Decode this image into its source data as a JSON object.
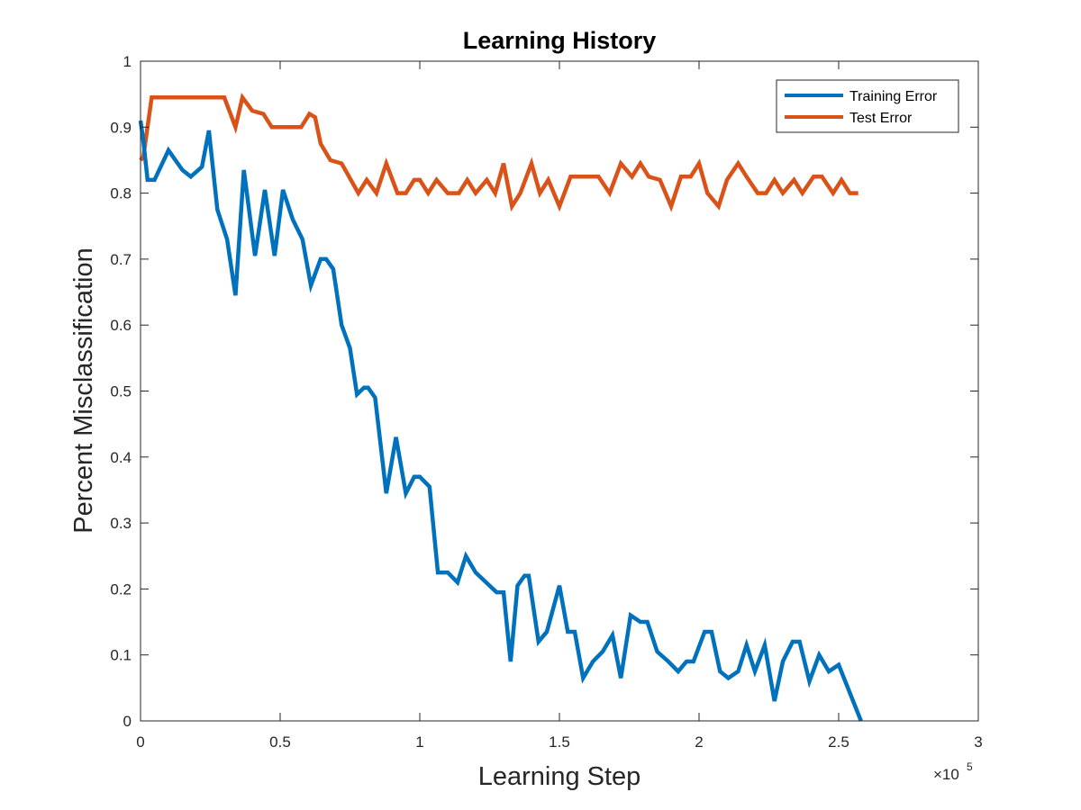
{
  "chart_data": {
    "type": "line",
    "title": "Learning History",
    "xlabel": "Learning Step",
    "ylabel": "Percent Misclassification",
    "x_exponent_label": "×10",
    "x_exponent_power": "5",
    "xlim": [
      0,
      3
    ],
    "ylim": [
      0,
      1
    ],
    "x_ticks": [
      0,
      0.5,
      1,
      1.5,
      2,
      2.5,
      3
    ],
    "x_tick_labels": [
      "0",
      "0.5",
      "1",
      "1.5",
      "2",
      "2.5",
      "3"
    ],
    "y_ticks": [
      0,
      0.1,
      0.2,
      0.3,
      0.4,
      0.5,
      0.6,
      0.7,
      0.8,
      0.9,
      1
    ],
    "y_tick_labels": [
      "0",
      "0.1",
      "0.2",
      "0.3",
      "0.4",
      "0.5",
      "0.6",
      "0.7",
      "0.8",
      "0.9",
      "1"
    ],
    "grid": false,
    "legend_position": "top-right",
    "series": [
      {
        "name": "Training Error",
        "color": "#0072BD",
        "points": [
          [
            0,
            0.91
          ],
          [
            0.01,
            0.88
          ],
          [
            0.025,
            0.82
          ],
          [
            0.05,
            0.82
          ],
          [
            0.1,
            0.865
          ],
          [
            0.15,
            0.835
          ],
          [
            0.18,
            0.825
          ],
          [
            0.22,
            0.84
          ],
          [
            0.245,
            0.895
          ],
          [
            0.275,
            0.775
          ],
          [
            0.31,
            0.73
          ],
          [
            0.34,
            0.645
          ],
          [
            0.37,
            0.835
          ],
          [
            0.41,
            0.705
          ],
          [
            0.445,
            0.805
          ],
          [
            0.48,
            0.705
          ],
          [
            0.51,
            0.805
          ],
          [
            0.545,
            0.76
          ],
          [
            0.58,
            0.73
          ],
          [
            0.61,
            0.66
          ],
          [
            0.645,
            0.7
          ],
          [
            0.665,
            0.7
          ],
          [
            0.69,
            0.685
          ],
          [
            0.72,
            0.6
          ],
          [
            0.75,
            0.565
          ],
          [
            0.775,
            0.495
          ],
          [
            0.8,
            0.505
          ],
          [
            0.815,
            0.505
          ],
          [
            0.84,
            0.49
          ],
          [
            0.88,
            0.345
          ],
          [
            0.915,
            0.43
          ],
          [
            0.95,
            0.345
          ],
          [
            0.98,
            0.37
          ],
          [
            1.0,
            0.37
          ],
          [
            1.035,
            0.355
          ],
          [
            1.065,
            0.225
          ],
          [
            1.1,
            0.225
          ],
          [
            1.135,
            0.21
          ],
          [
            1.165,
            0.25
          ],
          [
            1.2,
            0.225
          ],
          [
            1.275,
            0.195
          ],
          [
            1.3,
            0.195
          ],
          [
            1.325,
            0.09
          ],
          [
            1.35,
            0.205
          ],
          [
            1.375,
            0.22
          ],
          [
            1.39,
            0.22
          ],
          [
            1.425,
            0.12
          ],
          [
            1.455,
            0.135
          ],
          [
            1.5,
            0.205
          ],
          [
            1.53,
            0.135
          ],
          [
            1.555,
            0.135
          ],
          [
            1.585,
            0.065
          ],
          [
            1.62,
            0.09
          ],
          [
            1.655,
            0.105
          ],
          [
            1.69,
            0.13
          ],
          [
            1.72,
            0.065
          ],
          [
            1.755,
            0.16
          ],
          [
            1.79,
            0.15
          ],
          [
            1.815,
            0.15
          ],
          [
            1.85,
            0.105
          ],
          [
            1.89,
            0.09
          ],
          [
            1.925,
            0.075
          ],
          [
            1.955,
            0.09
          ],
          [
            1.98,
            0.09
          ],
          [
            2.02,
            0.135
          ],
          [
            2.045,
            0.135
          ],
          [
            2.075,
            0.075
          ],
          [
            2.105,
            0.065
          ],
          [
            2.14,
            0.075
          ],
          [
            2.17,
            0.115
          ],
          [
            2.2,
            0.075
          ],
          [
            2.235,
            0.115
          ],
          [
            2.27,
            0.03
          ],
          [
            2.3,
            0.09
          ],
          [
            2.335,
            0.12
          ],
          [
            2.36,
            0.12
          ],
          [
            2.395,
            0.06
          ],
          [
            2.43,
            0.1
          ],
          [
            2.465,
            0.075
          ],
          [
            2.5,
            0.085
          ],
          [
            2.58,
            0.0
          ]
        ]
      },
      {
        "name": "Test Error",
        "color": "#D95319",
        "points": [
          [
            0,
            0.85
          ],
          [
            0.01,
            0.855
          ],
          [
            0.04,
            0.945
          ],
          [
            0.1,
            0.945
          ],
          [
            0.3,
            0.945
          ],
          [
            0.34,
            0.9
          ],
          [
            0.365,
            0.945
          ],
          [
            0.4,
            0.925
          ],
          [
            0.44,
            0.92
          ],
          [
            0.47,
            0.9
          ],
          [
            0.575,
            0.9
          ],
          [
            0.605,
            0.92
          ],
          [
            0.625,
            0.915
          ],
          [
            0.645,
            0.875
          ],
          [
            0.68,
            0.85
          ],
          [
            0.72,
            0.845
          ],
          [
            0.78,
            0.8
          ],
          [
            0.81,
            0.82
          ],
          [
            0.845,
            0.8
          ],
          [
            0.88,
            0.845
          ],
          [
            0.92,
            0.8
          ],
          [
            0.95,
            0.8
          ],
          [
            0.98,
            0.82
          ],
          [
            1.0,
            0.82
          ],
          [
            1.03,
            0.8
          ],
          [
            1.06,
            0.82
          ],
          [
            1.1,
            0.8
          ],
          [
            1.14,
            0.8
          ],
          [
            1.17,
            0.82
          ],
          [
            1.2,
            0.8
          ],
          [
            1.24,
            0.82
          ],
          [
            1.27,
            0.8
          ],
          [
            1.3,
            0.845
          ],
          [
            1.33,
            0.78
          ],
          [
            1.36,
            0.8
          ],
          [
            1.4,
            0.845
          ],
          [
            1.43,
            0.8
          ],
          [
            1.46,
            0.82
          ],
          [
            1.5,
            0.78
          ],
          [
            1.54,
            0.825
          ],
          [
            1.64,
            0.825
          ],
          [
            1.68,
            0.8
          ],
          [
            1.72,
            0.845
          ],
          [
            1.76,
            0.825
          ],
          [
            1.79,
            0.845
          ],
          [
            1.82,
            0.825
          ],
          [
            1.86,
            0.82
          ],
          [
            1.9,
            0.78
          ],
          [
            1.935,
            0.825
          ],
          [
            1.97,
            0.825
          ],
          [
            2.0,
            0.845
          ],
          [
            2.03,
            0.8
          ],
          [
            2.07,
            0.78
          ],
          [
            2.1,
            0.82
          ],
          [
            2.14,
            0.845
          ],
          [
            2.17,
            0.825
          ],
          [
            2.21,
            0.8
          ],
          [
            2.24,
            0.8
          ],
          [
            2.27,
            0.82
          ],
          [
            2.3,
            0.8
          ],
          [
            2.34,
            0.82
          ],
          [
            2.37,
            0.8
          ],
          [
            2.41,
            0.825
          ],
          [
            2.44,
            0.825
          ],
          [
            2.48,
            0.8
          ],
          [
            2.51,
            0.82
          ],
          [
            2.54,
            0.8
          ],
          [
            2.57,
            0.8
          ]
        ]
      }
    ]
  }
}
